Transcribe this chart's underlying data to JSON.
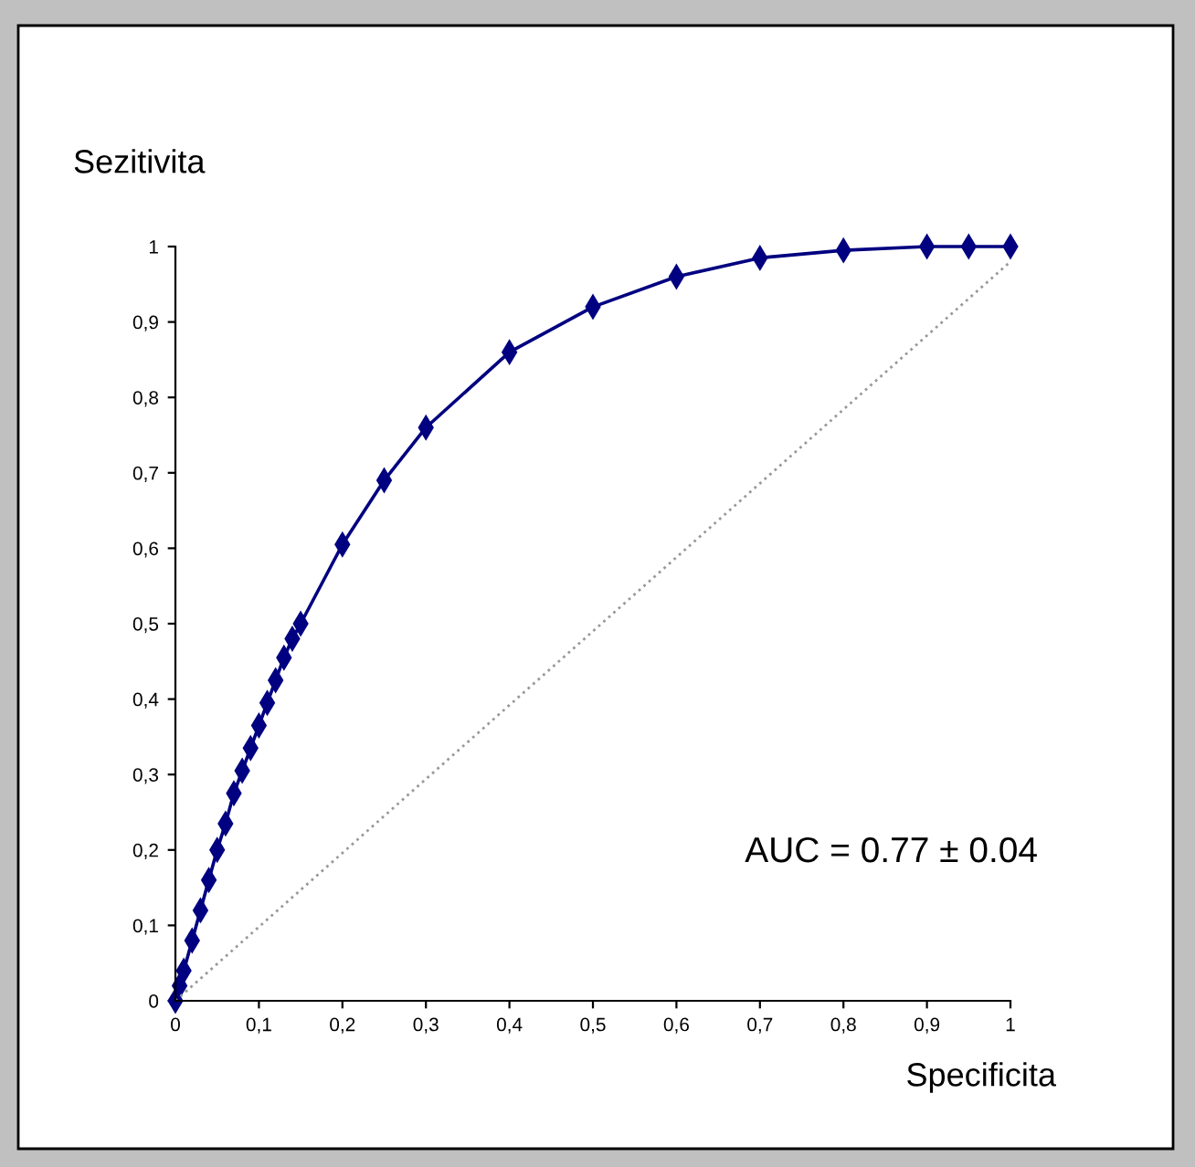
{
  "chart_data": {
    "type": "line",
    "xlabel": "Specificita",
    "ylabel": "Sezitivita",
    "annotations": [
      "AUC = 0.77 ± 0.04"
    ],
    "series": [
      {
        "color": "#000080",
        "marker": "diamond",
        "line_style": "solid",
        "x": [
          0,
          0.005,
          0.01,
          0.02,
          0.03,
          0.04,
          0.05,
          0.06,
          0.07,
          0.08,
          0.09,
          0.1,
          0.11,
          0.12,
          0.13,
          0.14,
          0.15,
          0.2,
          0.25,
          0.3,
          0.4,
          0.5,
          0.6,
          0.7,
          0.8,
          0.9,
          0.95,
          1
        ],
        "values": [
          0,
          0.02,
          0.04,
          0.08,
          0.12,
          0.16,
          0.2,
          0.235,
          0.275,
          0.305,
          0.335,
          0.365,
          0.395,
          0.425,
          0.455,
          0.48,
          0.5,
          0.605,
          0.69,
          0.76,
          0.86,
          0.92,
          0.96,
          0.985,
          0.995,
          1,
          1,
          1
        ]
      },
      {
        "color": "#999999",
        "marker": "none",
        "line_style": "dotted",
        "x": [
          0,
          1
        ],
        "values": [
          0,
          0.98
        ]
      }
    ],
    "xlim": [
      0,
      1
    ],
    "ylim": [
      0,
      1
    ],
    "xticks": [
      0,
      {
        "value": 0.1,
        "label": "0,1"
      },
      {
        "value": 0.2,
        "label": "0,2"
      },
      {
        "value": 0.3,
        "label": "0,3"
      },
      {
        "value": 0.4,
        "label": "0,4"
      },
      {
        "value": 0.5,
        "label": "0,5"
      },
      {
        "value": 0.6,
        "label": "0,6"
      },
      {
        "value": 0.7,
        "label": "0,7"
      },
      {
        "value": 0.8,
        "label": "0,8"
      },
      {
        "value": 0.9,
        "label": "0,9"
      },
      1
    ],
    "yticks": [
      0,
      {
        "value": 0.1,
        "label": "0,1"
      },
      {
        "value": 0.2,
        "label": "0,2"
      },
      {
        "value": 0.3,
        "label": "0,3"
      },
      {
        "value": 0.4,
        "label": "0,4"
      },
      {
        "value": 0.5,
        "label": "0,5"
      },
      {
        "value": 0.6,
        "label": "0,6"
      },
      {
        "value": 0.7,
        "label": "0,7"
      },
      {
        "value": 0.8,
        "label": "0,8"
      },
      {
        "value": 0.9,
        "label": "0,9"
      },
      1
    ],
    "grid": false,
    "legend": false
  }
}
